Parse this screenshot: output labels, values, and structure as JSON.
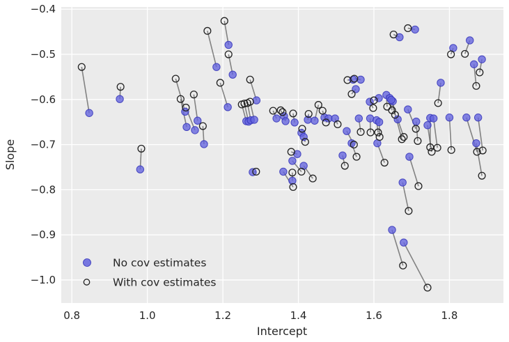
{
  "chart_data": {
    "type": "scatter",
    "title": "",
    "xlabel": "Intercept",
    "ylabel": "Slope",
    "xlim": [
      0.772,
      1.943
    ],
    "ylim": [
      -1.051,
      -0.395
    ],
    "xticks": [
      0.8,
      1.0,
      1.2,
      1.4,
      1.6,
      1.8
    ],
    "yticks": [
      -0.4,
      -0.5,
      -0.6,
      -0.7,
      -0.8,
      -0.9,
      -1.0
    ],
    "grid": true,
    "grid_color": "#ffffff",
    "plot_bg_color": "#ebebeb",
    "connector_color": "#4a4a4a",
    "no_cov_color": "#6363de",
    "no_cov_edge_color": "#3232b8",
    "with_cov_edge_color": "#222222",
    "legend": {
      "position": "lower left",
      "entries": [
        {
          "label": "No cov estimates",
          "marker": "filled-circle"
        },
        {
          "label": "With cov estimates",
          "marker": "open-circle"
        }
      ]
    },
    "pairs_note": "each pair is [x_no_cov, y_no_cov, x_with_cov, y_with_cov]; a gray segment connects the two estimates",
    "pairs": [
      [
        0.846,
        -0.63,
        0.826,
        -0.528
      ],
      [
        0.927,
        -0.599,
        0.929,
        -0.572
      ],
      [
        0.981,
        -0.755,
        0.984,
        -0.709
      ],
      [
        1.1,
        -0.627,
        1.075,
        -0.554
      ],
      [
        1.104,
        -0.661,
        1.088,
        -0.599
      ],
      [
        1.126,
        -0.668,
        1.102,
        -0.618
      ],
      [
        1.133,
        -0.647,
        1.123,
        -0.589
      ],
      [
        1.15,
        -0.699,
        1.147,
        -0.659
      ],
      [
        1.183,
        -0.528,
        1.159,
        -0.448
      ],
      [
        1.215,
        -0.479,
        1.204,
        -0.426
      ],
      [
        1.226,
        -0.545,
        1.215,
        -0.5
      ],
      [
        1.213,
        -0.617,
        1.193,
        -0.563
      ],
      [
        1.262,
        -0.648,
        1.25,
        -0.611
      ],
      [
        1.268,
        -0.649,
        1.257,
        -0.609
      ],
      [
        1.274,
        -0.646,
        1.265,
        -0.608
      ],
      [
        1.283,
        -0.645,
        1.272,
        -0.605
      ],
      [
        1.289,
        -0.602,
        1.272,
        -0.556
      ],
      [
        1.279,
        -0.761,
        1.288,
        -0.76
      ],
      [
        1.342,
        -0.642,
        1.333,
        -0.625
      ],
      [
        1.362,
        -0.637,
        1.353,
        -0.624
      ],
      [
        1.366,
        -0.648,
        1.358,
        -0.628
      ],
      [
        1.39,
        -0.651,
        1.386,
        -0.631
      ],
      [
        1.408,
        -0.674,
        1.41,
        -0.665
      ],
      [
        1.414,
        -0.683,
        1.418,
        -0.694
      ],
      [
        1.425,
        -0.645,
        1.427,
        -0.632
      ],
      [
        1.443,
        -0.647,
        1.453,
        -0.612
      ],
      [
        1.469,
        -0.64,
        1.464,
        -0.625
      ],
      [
        1.48,
        -0.642,
        1.473,
        -0.651
      ],
      [
        1.497,
        -0.642,
        1.504,
        -0.655
      ],
      [
        1.545,
        -0.556,
        1.53,
        -0.557
      ],
      [
        1.565,
        -0.556,
        1.548,
        -0.554
      ],
      [
        1.552,
        -0.577,
        1.541,
        -0.588
      ],
      [
        1.56,
        -0.642,
        1.565,
        -0.672
      ],
      [
        1.528,
        -0.67,
        1.547,
        -0.7
      ],
      [
        1.541,
        -0.697,
        1.554,
        -0.727
      ],
      [
        1.517,
        -0.724,
        1.523,
        -0.747
      ],
      [
        1.589,
        -0.605,
        1.598,
        -0.619
      ],
      [
        1.613,
        -0.597,
        1.6,
        -0.602
      ],
      [
        1.633,
        -0.59,
        1.635,
        -0.616
      ],
      [
        1.642,
        -0.597,
        1.648,
        -0.624
      ],
      [
        1.65,
        -0.604,
        1.656,
        -0.634
      ],
      [
        1.646,
        -0.601,
        1.674,
        -0.688
      ],
      [
        1.663,
        -0.644,
        1.679,
        -0.683
      ],
      [
        1.59,
        -0.642,
        1.591,
        -0.673
      ],
      [
        1.607,
        -0.646,
        1.611,
        -0.673
      ],
      [
        1.614,
        -0.65,
        1.615,
        -0.683
      ],
      [
        1.609,
        -0.697,
        1.628,
        -0.74
      ],
      [
        1.69,
        -0.622,
        1.711,
        -0.665
      ],
      [
        1.712,
        -0.649,
        1.716,
        -0.692
      ],
      [
        1.668,
        -0.462,
        1.652,
        -0.456
      ],
      [
        1.709,
        -0.445,
        1.69,
        -0.442
      ],
      [
        1.749,
        -0.641,
        1.749,
        -0.706
      ],
      [
        1.758,
        -0.642,
        1.768,
        -0.707
      ],
      [
        1.742,
        -0.657,
        1.753,
        -0.716
      ],
      [
        1.777,
        -0.563,
        1.77,
        -0.608
      ],
      [
        1.8,
        -0.64,
        1.805,
        -0.712
      ],
      [
        1.81,
        -0.486,
        1.804,
        -0.5
      ],
      [
        1.854,
        -0.469,
        1.841,
        -0.499
      ],
      [
        1.865,
        -0.522,
        1.871,
        -0.57
      ],
      [
        1.886,
        -0.511,
        1.88,
        -0.54
      ],
      [
        1.845,
        -0.64,
        1.873,
        -0.716
      ],
      [
        1.876,
        -0.64,
        1.888,
        -0.713
      ],
      [
        1.871,
        -0.697,
        1.886,
        -0.769
      ],
      [
        1.694,
        -0.727,
        1.718,
        -0.792
      ],
      [
        1.676,
        -0.784,
        1.692,
        -0.847
      ],
      [
        1.648,
        -0.889,
        1.677,
        -0.968
      ],
      [
        1.679,
        -0.917,
        1.742,
        -1.017
      ],
      [
        1.36,
        -0.76,
        1.386,
        -0.794
      ],
      [
        1.384,
        -0.78,
        1.384,
        -0.762
      ],
      [
        1.397,
        -0.721,
        1.381,
        -0.716
      ],
      [
        1.384,
        -0.736,
        1.408,
        -0.76
      ],
      [
        1.414,
        -0.747,
        1.438,
        -0.775
      ]
    ]
  }
}
